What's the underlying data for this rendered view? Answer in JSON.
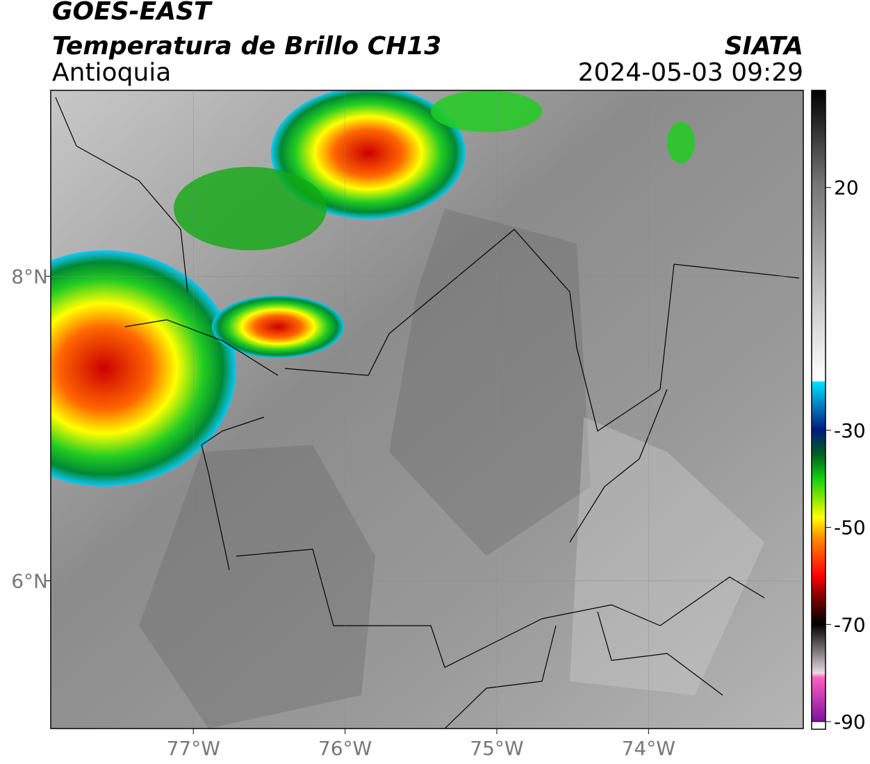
{
  "header": {
    "title": "GOES-EAST",
    "subtitle": "Temperatura de Brillo CH13",
    "region": "Antioquia",
    "source": "SIATA",
    "timestamp": "2024-05-03 09:29"
  },
  "map": {
    "xlim": [
      -77.94,
      -72.98
    ],
    "ylim": [
      5.03,
      9.22
    ],
    "xticks": [
      {
        "value": -77,
        "label": "77°W"
      },
      {
        "value": -76,
        "label": "76°W"
      },
      {
        "value": -75,
        "label": "75°W"
      },
      {
        "value": -74,
        "label": "74°W"
      }
    ],
    "yticks": [
      {
        "value": 8,
        "label": "8°N"
      },
      {
        "value": 6,
        "label": "6°N"
      }
    ],
    "grid": true
  },
  "colorbar": {
    "lim": [
      -90,
      40
    ],
    "ticks": [
      20,
      -30,
      -50,
      -70,
      -90
    ]
  }
}
